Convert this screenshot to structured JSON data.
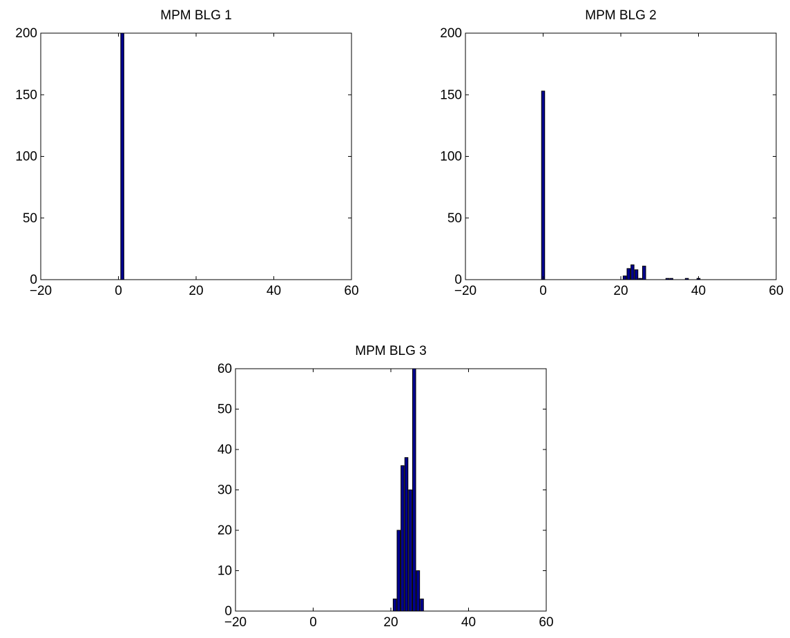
{
  "figure": {
    "background": "#ffffff",
    "bar_color": "#00008f",
    "edge_color": "#000000"
  },
  "chart_data": [
    {
      "type": "bar",
      "title": "MPM BLG 1",
      "xlabel": "",
      "ylabel": "",
      "xlim": [
        -20,
        60
      ],
      "ylim": [
        0,
        200
      ],
      "xticks": [
        "−20",
        "0",
        "20",
        "40",
        "60"
      ],
      "xtick_values": [
        -20,
        0,
        20,
        40,
        60
      ],
      "yticks": [
        "0",
        "50",
        "100",
        "150",
        "200"
      ],
      "ytick_values": [
        0,
        50,
        100,
        150,
        200
      ],
      "bin_width": 0.8,
      "x": [
        1
      ],
      "values": [
        200
      ],
      "grid": false
    },
    {
      "type": "bar",
      "title": "MPM BLG 2",
      "xlabel": "",
      "ylabel": "",
      "xlim": [
        -20,
        60
      ],
      "ylim": [
        0,
        200
      ],
      "xticks": [
        "−20",
        "0",
        "20",
        "40",
        "60"
      ],
      "xtick_values": [
        -20,
        0,
        20,
        40,
        60
      ],
      "yticks": [
        "0",
        "50",
        "100",
        "150",
        "200"
      ],
      "ytick_values": [
        0,
        50,
        100,
        150,
        200
      ],
      "bin_width": 0.8,
      "x": [
        0,
        21,
        22,
        23,
        24,
        25,
        26,
        32,
        33,
        37,
        40
      ],
      "values": [
        153,
        3,
        9,
        12,
        8,
        1,
        11,
        1,
        1,
        1,
        1
      ],
      "grid": false
    },
    {
      "type": "bar",
      "title": "MPM BLG 3",
      "xlabel": "",
      "ylabel": "",
      "xlim": [
        -20,
        60
      ],
      "ylim": [
        0,
        60
      ],
      "xticks": [
        "−20",
        "0",
        "20",
        "40",
        "60"
      ],
      "xtick_values": [
        -20,
        0,
        20,
        40,
        60
      ],
      "yticks": [
        "0",
        "10",
        "20",
        "30",
        "40",
        "50",
        "60"
      ],
      "ytick_values": [
        0,
        10,
        20,
        30,
        40,
        50,
        60
      ],
      "bin_width": 0.8,
      "x": [
        21,
        22,
        23,
        24,
        25,
        26,
        27,
        28
      ],
      "values": [
        3,
        20,
        36,
        38,
        30,
        60,
        10,
        3
      ],
      "grid": false
    }
  ]
}
